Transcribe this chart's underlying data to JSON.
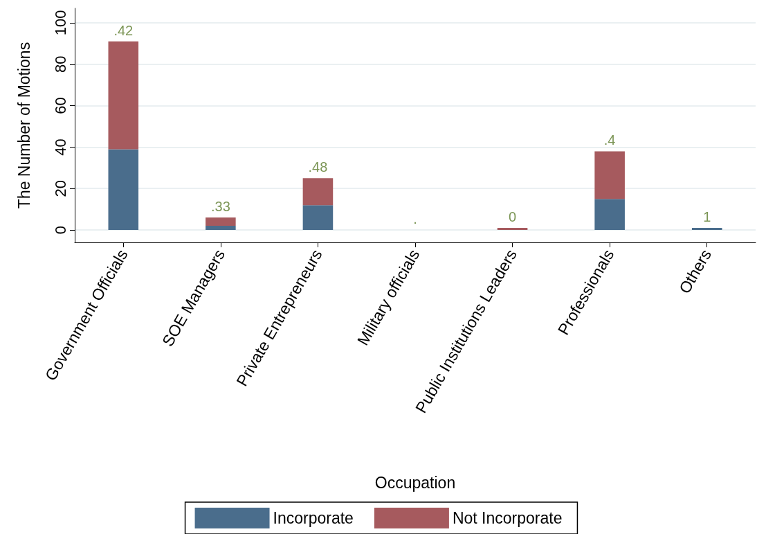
{
  "chart_data": {
    "type": "bar",
    "stacked": true,
    "xlabel": "Occupation",
    "ylabel": "The Number of Motions",
    "categories": [
      "Government Officials",
      "SOE Managers",
      "Private Entrepreneurs",
      "Military officials",
      "Public Institutions Leaders",
      "Professionals",
      "Others"
    ],
    "series": [
      {
        "name": "Incorporate",
        "color": "#4a6d8c",
        "values": [
          39,
          2,
          12,
          0,
          0,
          15,
          1
        ]
      },
      {
        "name": "Not Incorporate",
        "color": "#a65a5e",
        "values": [
          52,
          4,
          13,
          0,
          1,
          23,
          0
        ]
      }
    ],
    "annotations": [
      {
        "text": ".42",
        "x": "Government Officials",
        "y": 91
      },
      {
        "text": ".33",
        "x": "SOE Managers",
        "y": 6
      },
      {
        "text": ".48",
        "x": "Private Entrepreneurs",
        "y": 25
      },
      {
        "text": ".",
        "x": "Military officials",
        "y": 0
      },
      {
        "text": "0",
        "x": "Public Institutions Leaders",
        "y": 1
      },
      {
        "text": ".4",
        "x": "Professionals",
        "y": 38
      },
      {
        "text": "1",
        "x": "Others",
        "y": 1
      }
    ],
    "ylim": [
      -6,
      107
    ],
    "yticks": [
      0,
      20,
      40,
      60,
      80,
      100
    ],
    "grid": "y",
    "legend": "bottom"
  }
}
